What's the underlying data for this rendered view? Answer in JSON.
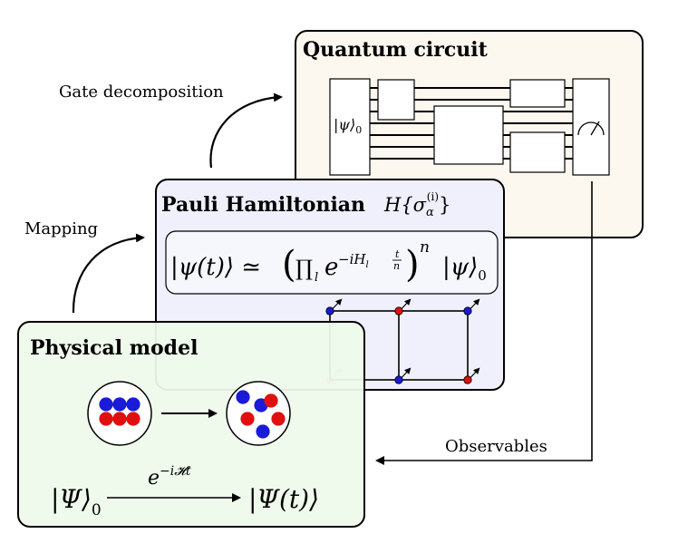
{
  "cards": {
    "quantum": {
      "title": "Quantum circuit",
      "fill": "#fcf7ef"
    },
    "pauli": {
      "title": "Pauli Hamiltonian",
      "fill": "#eff0fb"
    },
    "physical": {
      "title": "Physical model",
      "fill": "#eefaeb"
    }
  },
  "labels": {
    "gate_decomposition": "Gate decomposition",
    "mapping": "Mapping",
    "observables": "Observables"
  },
  "math": {
    "circuit_input_state": "|ψ⟩",
    "circuit_input_sub": "0",
    "hamiltonian_symbol": "H{σ",
    "hamiltonian_sub": "α",
    "hamiltonian_sup": "(i)",
    "hamiltonian_close": "}",
    "trotter_lhs": "|ψ(t)⟩ ≃",
    "trotter_product": "∏",
    "trotter_product_sub": "l",
    "trotter_exp_base": "e",
    "trotter_exp_sup": "−iH",
    "trotter_exp_sup_sub": "l",
    "trotter_frac_num": "t",
    "trotter_frac_den": "n",
    "trotter_power": "n",
    "trotter_rhs": "|ψ⟩",
    "trotter_rhs_sub": "0",
    "initial_state": "|Ψ⟩",
    "initial_state_sub": "0",
    "evolution_operator": "e",
    "evolution_sup": "−i𝓗t",
    "final_state": "|Ψ(t)⟩"
  },
  "colors": {
    "spin_blue": "#1a1ad9",
    "spin_red": "#e01010"
  }
}
